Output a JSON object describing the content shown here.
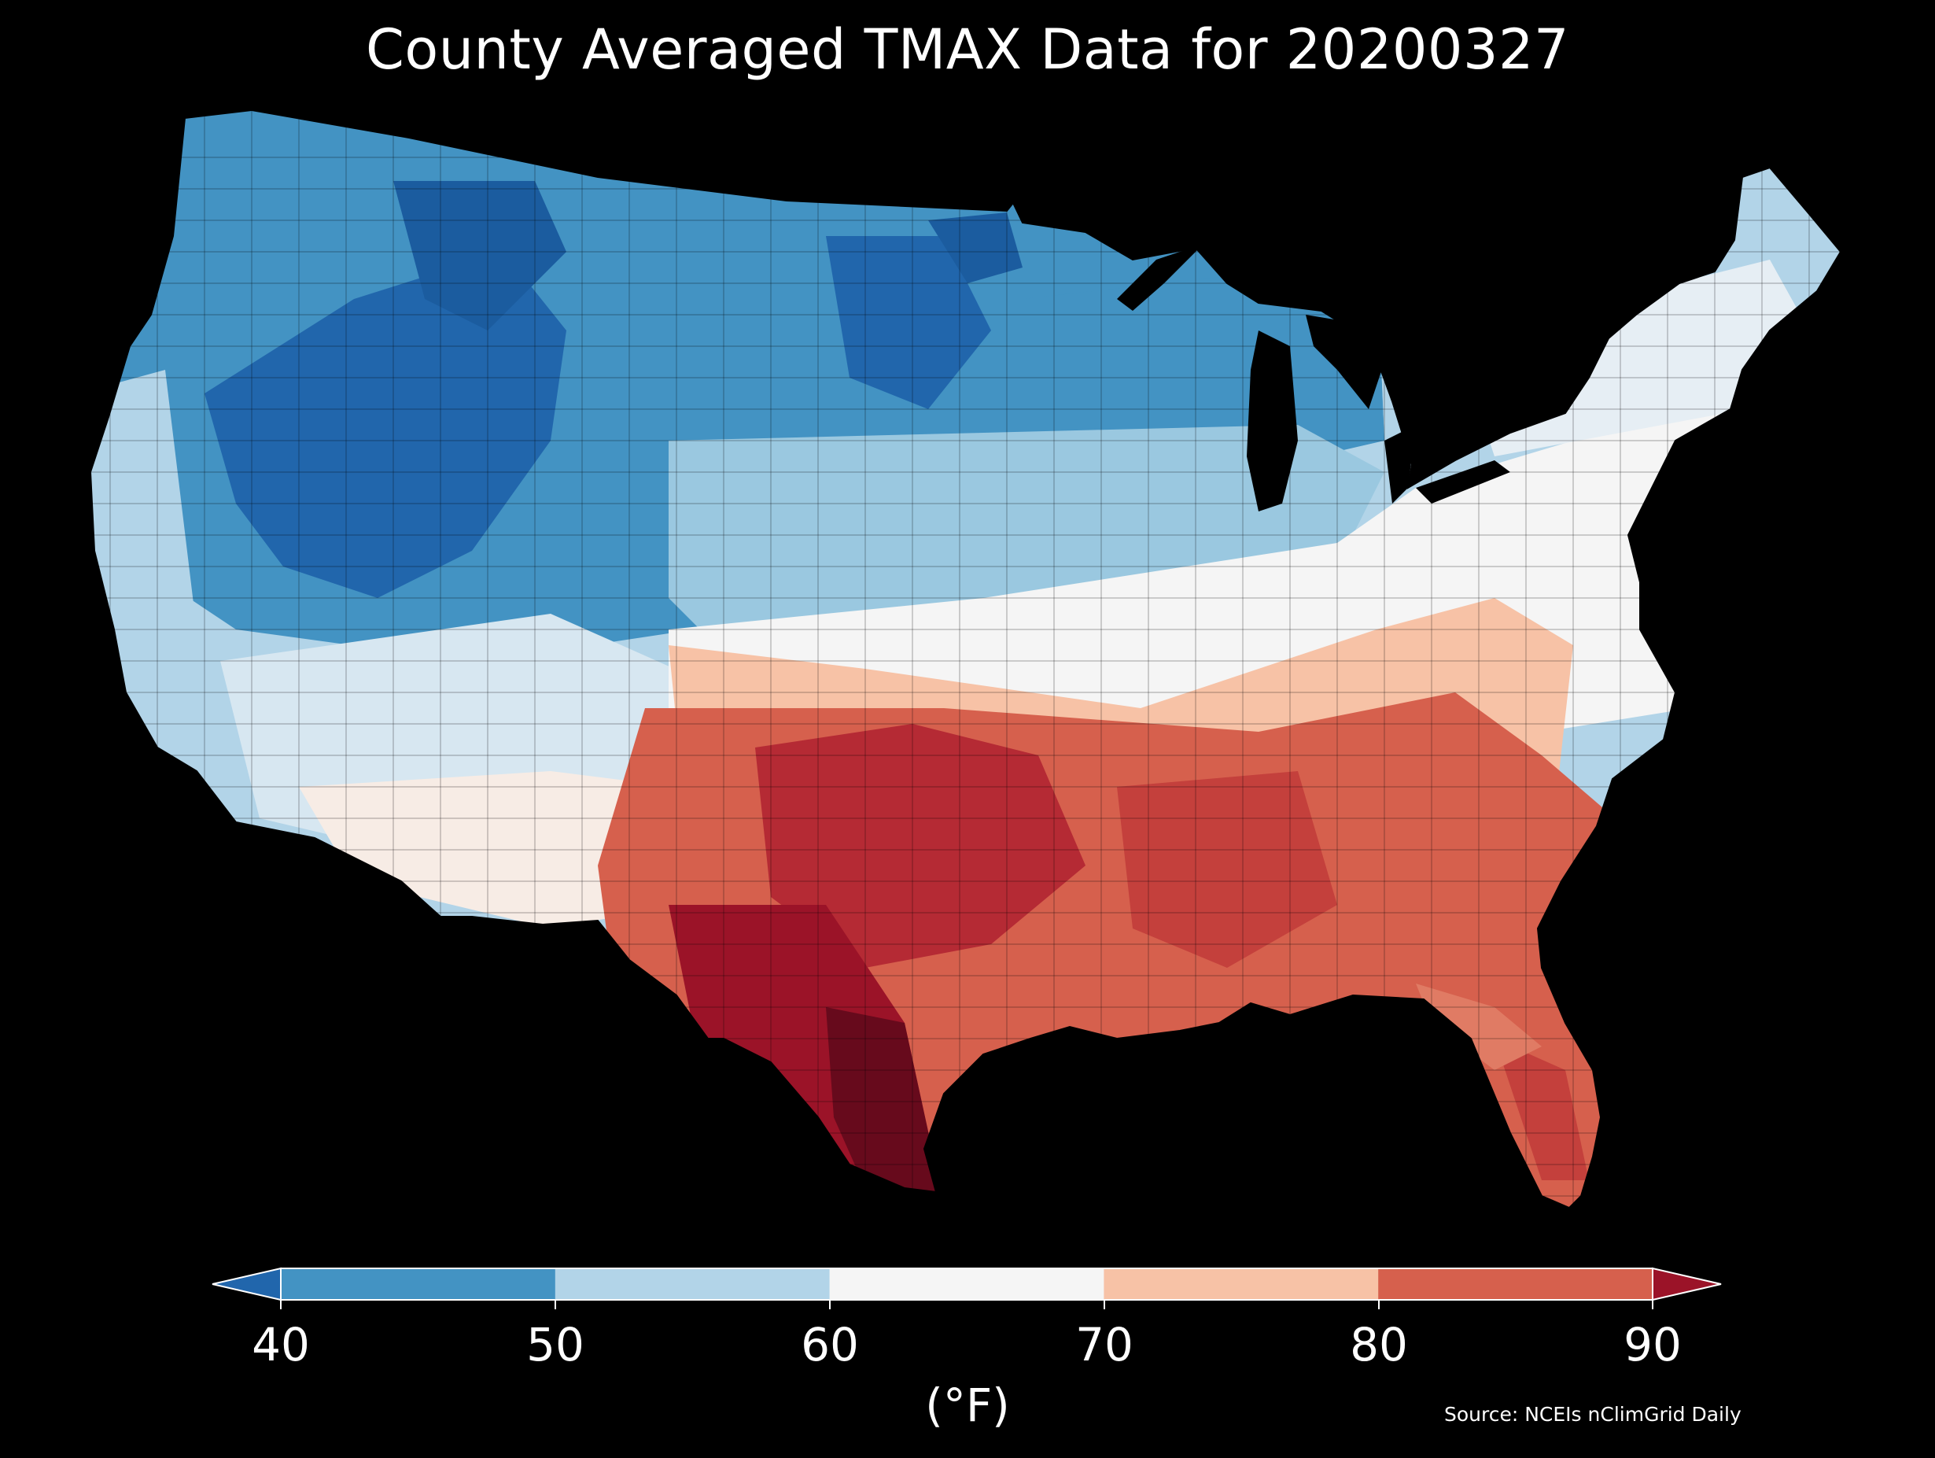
{
  "title": "County Averaged TMAX Data for 20200327",
  "source": "Source: NCEIs nClimGrid Daily",
  "colorbar": {
    "units": "(°F)",
    "ticks": [
      "40",
      "50",
      "60",
      "70",
      "80",
      "90"
    ],
    "bins": [
      {
        "range": "<40",
        "color": "#2166ac"
      },
      {
        "range": "40-50",
        "color": "#4393c3"
      },
      {
        "range": "50-60",
        "color": "#b2d4e8"
      },
      {
        "range": "60-70",
        "color": "#f5f5f5"
      },
      {
        "range": "70-80",
        "color": "#f7c2a6"
      },
      {
        "range": "80-90",
        "color": "#d6604d"
      },
      {
        "range": ">90",
        "color": "#9b1328"
      }
    ]
  },
  "map": {
    "region": "Contiguous United States",
    "pattern": "cool (40-60°F) across the north and west, warm (70-90°F) across the south; hottest in south Texas"
  },
  "colors": {
    "background": "#000000",
    "text": "#ffffff",
    "borders": "#000000"
  }
}
